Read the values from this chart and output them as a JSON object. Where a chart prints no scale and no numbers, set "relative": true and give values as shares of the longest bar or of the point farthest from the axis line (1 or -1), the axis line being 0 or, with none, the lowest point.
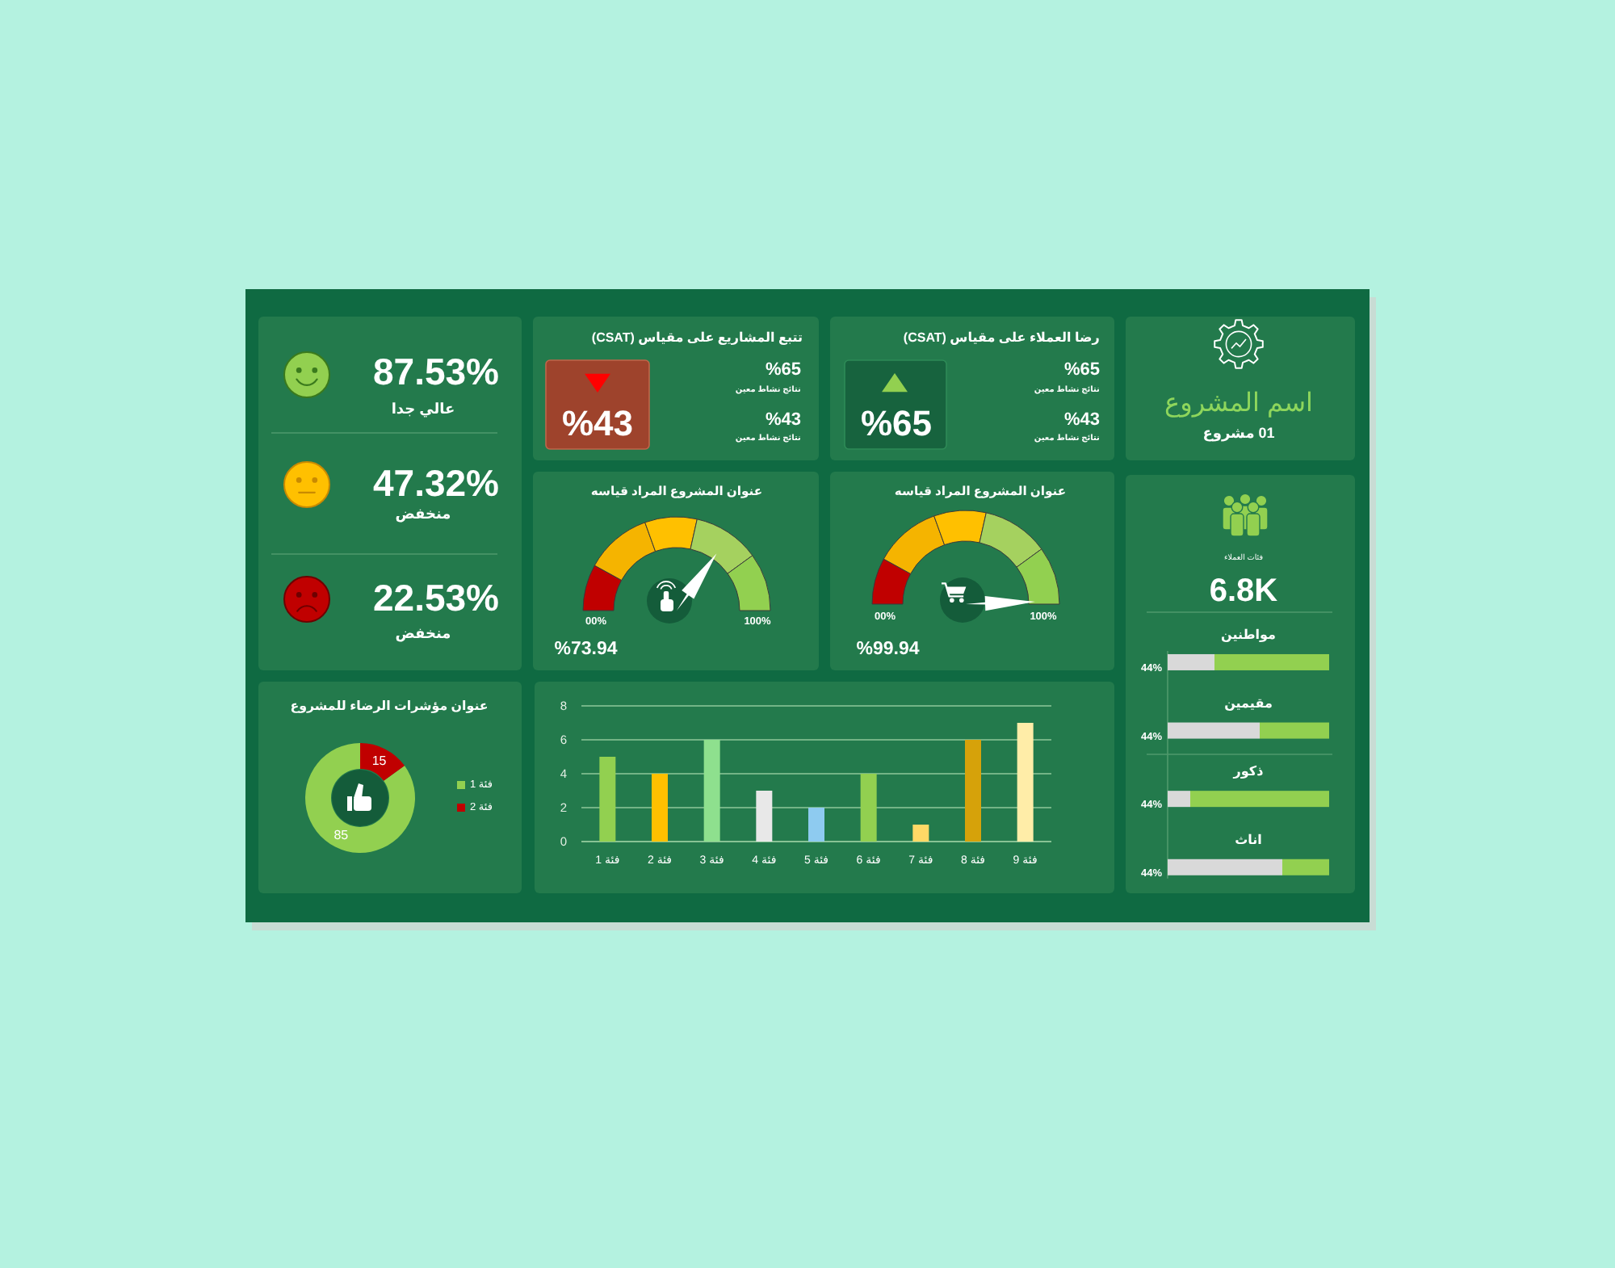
{
  "chart_data": [
    {
      "type": "other",
      "annotations": [
        "87.53%",
        "عالي جدا",
        "47.32%",
        "منخفض",
        "22.53%",
        "منخفض"
      ]
    },
    {
      "type": "other",
      "title": "تتبع المشاريع على مقياس (CSAT)",
      "annotations": [
        "%43",
        "%65",
        "نتائج نشاط معين",
        "%43",
        "نتائج نشاط معين"
      ]
    },
    {
      "type": "other",
      "title": "رضا العملاء على مقياس (CSAT)",
      "annotations": [
        "%65",
        "%65",
        "نتائج نشاط معين",
        "%43",
        "نتائج نشاط معين"
      ]
    },
    {
      "type": "other",
      "title": "اسم المشروع",
      "subtitle": "01 مشروع"
    },
    {
      "type": "donut",
      "title": "عنوان المشروع المراد قياسه",
      "categories": [
        null,
        null,
        null,
        null,
        null
      ],
      "values": [
        16,
        23,
        18,
        23,
        20
      ],
      "colors": [
        "#c00000",
        "#f5b400",
        "#ffc000",
        "#a5d15f",
        "#92d050"
      ],
      "annotations": [
        "00%",
        "100%",
        "%73.94"
      ]
    },
    {
      "type": "donut",
      "title": "عنوان المشروع المراد قياسه",
      "categories": [
        null,
        null,
        null,
        null,
        null
      ],
      "values": [
        16,
        23,
        18,
        23,
        20
      ],
      "colors": [
        "#c00000",
        "#f5b400",
        "#ffc000",
        "#a5d15f",
        "#92d050"
      ],
      "annotations": [
        "00%",
        "100%",
        "%99.94"
      ]
    },
    {
      "type": "other",
      "annotations": [
        "فئات العملاء",
        "6.8K",
        "44%",
        "44%",
        "44%",
        "44%"
      ]
    },
    {
      "type": "bar",
      "orientation": "horizontal",
      "stacked": true,
      "relative": true,
      "categories": [
        "مواطنين",
        "مقيمين",
        "ذكور",
        "اناث"
      ],
      "series": [
        {
          "color": "#d9d9d9",
          "values": [
            0.29,
            0.57,
            0.14,
            0.71
          ]
        },
        {
          "color": "#92d050",
          "values": [
            0.71,
            0.43,
            0.86,
            0.29
          ]
        }
      ]
    },
    {
      "type": "donut",
      "title": "عنوان مؤشرات الرضاء للمشروع",
      "categories": [
        "فئة 1",
        "فئة 2"
      ],
      "values": [
        85,
        15
      ],
      "colors": [
        "#92d050",
        "#c00000"
      ],
      "data_labels": true,
      "legend": "right"
    },
    {
      "type": "bar",
      "categories": [
        "فئة 1",
        "فئة 2",
        "فئة 3",
        "فئة 4",
        "فئة 5",
        "فئة 6",
        "فئة 7",
        "فئة 8",
        "فئة 9"
      ],
      "values": [
        5,
        4,
        6,
        3,
        2,
        4,
        1,
        6,
        7
      ],
      "colors": [
        "#92d050",
        "#ffc000",
        "#8ee08e",
        "#e8e8e8",
        "#8ecbf0",
        "#92d050",
        "#ffd966",
        "#d6a20a",
        "#ffeda8"
      ],
      "ylim": [
        0,
        8
      ],
      "yticks": [
        0,
        2,
        4,
        6,
        8
      ],
      "grid": "y"
    }
  ]
}
